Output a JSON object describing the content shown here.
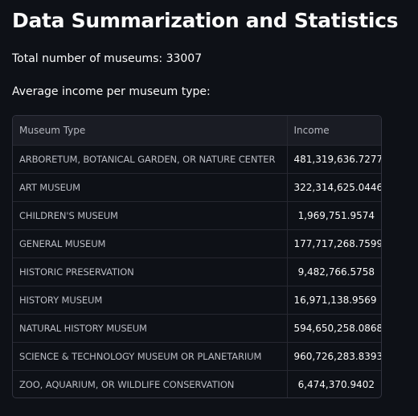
{
  "header": {
    "title": "Data Summarization and Statistics",
    "total_label": "Total number of museums: 33007",
    "average_label": "Average income per museum type:"
  },
  "table": {
    "columns": [
      "Museum Type",
      "Income"
    ],
    "rows": [
      {
        "type": "ARBORETUM, BOTANICAL GARDEN, OR NATURE CENTER",
        "income": "481,319,636.7277"
      },
      {
        "type": "ART MUSEUM",
        "income": "322,314,625.0446"
      },
      {
        "type": "CHILDREN'S MUSEUM",
        "income": "1,969,751.9574"
      },
      {
        "type": "GENERAL MUSEUM",
        "income": "177,717,268.7599"
      },
      {
        "type": "HISTORIC PRESERVATION",
        "income": "9,482,766.5758"
      },
      {
        "type": "HISTORY MUSEUM",
        "income": "16,971,138.9569"
      },
      {
        "type": "NATURAL HISTORY MUSEUM",
        "income": "594,650,258.0868"
      },
      {
        "type": "SCIENCE & TECHNOLOGY MUSEUM OR PLANETARIUM",
        "income": "960,726,283.8393"
      },
      {
        "type": "ZOO, AQUARIUM, OR WILDLIFE CONSERVATION",
        "income": "6,474,370.9402"
      }
    ]
  }
}
